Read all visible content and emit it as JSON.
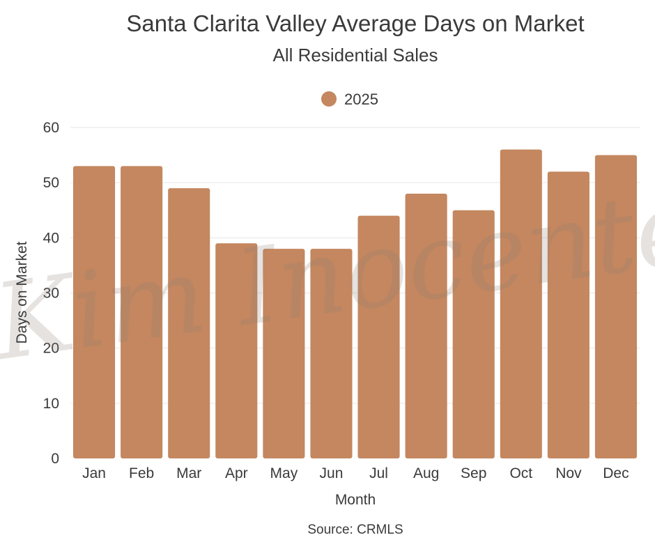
{
  "chart_data": {
    "type": "bar",
    "title": "Santa Clarita Valley Average Days on Market",
    "subtitle": "All Residential Sales",
    "xlabel": "Month",
    "ylabel": "Days on Market",
    "source": "Source: CRMLS",
    "watermark": "Kim Inocente",
    "legend": {
      "position": "top-center"
    },
    "ylim": [
      0,
      60
    ],
    "yticks": [
      0,
      10,
      20,
      30,
      40,
      50,
      60
    ],
    "grid": true,
    "categories": [
      "Jan",
      "Feb",
      "Mar",
      "Apr",
      "May",
      "Jun",
      "Jul",
      "Aug",
      "Sep",
      "Oct",
      "Nov",
      "Dec"
    ],
    "series": [
      {
        "name": "2025",
        "color": "#c4875f",
        "values": [
          53,
          53,
          49,
          39,
          38,
          38,
          44,
          48,
          45,
          56,
          52,
          55
        ]
      }
    ]
  }
}
